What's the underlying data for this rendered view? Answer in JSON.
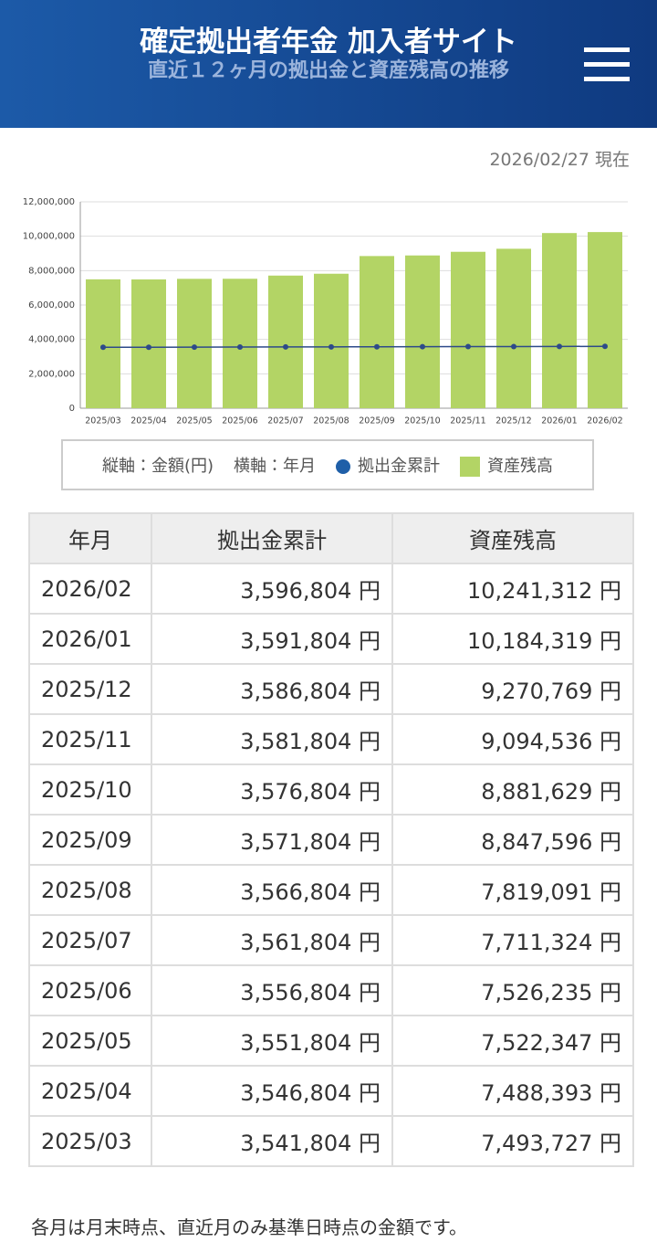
{
  "header": {
    "title": "確定拠出者年金 加入者サイト",
    "subtitle": "直近１２ヶ月の拠出金と資産残高の推移"
  },
  "as_of": "2026/02/27 現在",
  "chart_data": {
    "type": "bar",
    "y_label": "縦軸：金額(円)",
    "x_label": "横軸：年月",
    "categories": [
      "2025/03",
      "2025/04",
      "2025/05",
      "2025/06",
      "2025/07",
      "2025/08",
      "2025/09",
      "2025/10",
      "2025/11",
      "2025/12",
      "2026/01",
      "2026/02"
    ],
    "series": [
      {
        "name": "拠出金累計",
        "type": "line",
        "color": "#1f5fa8",
        "values": [
          3541804,
          3546804,
          3551804,
          3556804,
          3561804,
          3566804,
          3571804,
          3576804,
          3581804,
          3586804,
          3591804,
          3596804
        ]
      },
      {
        "name": "資産残高",
        "type": "bar",
        "color": "#b3d465",
        "values": [
          7493727,
          7488393,
          7522347,
          7526235,
          7711324,
          7819091,
          8847596,
          8881629,
          9094536,
          9270769,
          10184319,
          10241312
        ]
      }
    ],
    "ylim": [
      0,
      12000000
    ],
    "yticks": [
      0,
      {
        "value": 2000000,
        "label": "2,000,000"
      },
      {
        "value": 4000000,
        "label": "4,000,000"
      },
      {
        "value": 6000000,
        "label": "6,000,000"
      },
      {
        "value": 8000000,
        "label": "8,000,000"
      },
      {
        "value": 10000000,
        "label": "10,000,000"
      },
      {
        "value": 12000000,
        "label": "12,000,000"
      }
    ],
    "grid": true
  },
  "table": {
    "headers": [
      "年月",
      "拠出金累計",
      "資産残高"
    ],
    "rows": [
      [
        "2026/02",
        "3,596,804 円",
        "10,241,312 円"
      ],
      [
        "2026/01",
        "3,591,804 円",
        "10,184,319 円"
      ],
      [
        "2025/12",
        "3,586,804 円",
        "9,270,769 円"
      ],
      [
        "2025/11",
        "3,581,804 円",
        "9,094,536 円"
      ],
      [
        "2025/10",
        "3,576,804 円",
        "8,881,629 円"
      ],
      [
        "2025/09",
        "3,571,804 円",
        "8,847,596 円"
      ],
      [
        "2025/08",
        "3,566,804 円",
        "7,819,091 円"
      ],
      [
        "2025/07",
        "3,561,804 円",
        "7,711,324 円"
      ],
      [
        "2025/06",
        "3,556,804 円",
        "7,526,235 円"
      ],
      [
        "2025/05",
        "3,551,804 円",
        "7,522,347 円"
      ],
      [
        "2025/04",
        "3,546,804 円",
        "7,488,393 円"
      ],
      [
        "2025/03",
        "3,541,804 円",
        "7,493,727 円"
      ]
    ]
  },
  "footnote": "各月は月末時点、直近月のみ基準日時点の金額です。"
}
